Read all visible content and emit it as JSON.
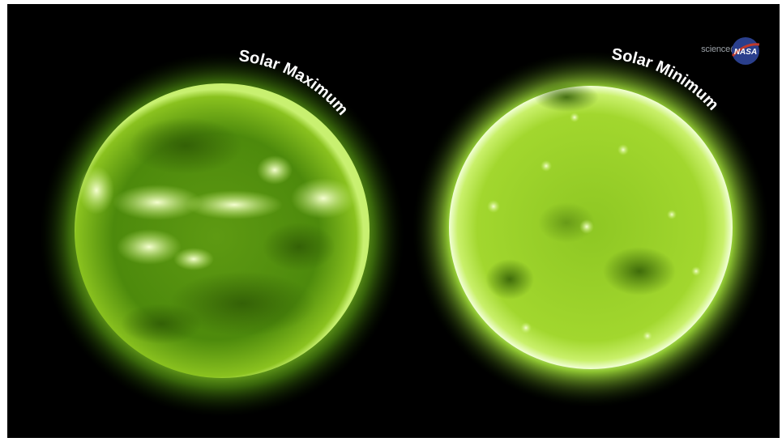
{
  "image": {
    "labels": {
      "left": "Solar Maximum",
      "right": "Solar Minimum"
    },
    "credit": {
      "prefix": "science@",
      "logo_text": "NASA"
    },
    "colors": {
      "background": "#000000",
      "sun_glow": "#8fd12a",
      "sun_core": "#6fa818",
      "active_region": "#eaffb0",
      "label": "#ffffff"
    }
  }
}
